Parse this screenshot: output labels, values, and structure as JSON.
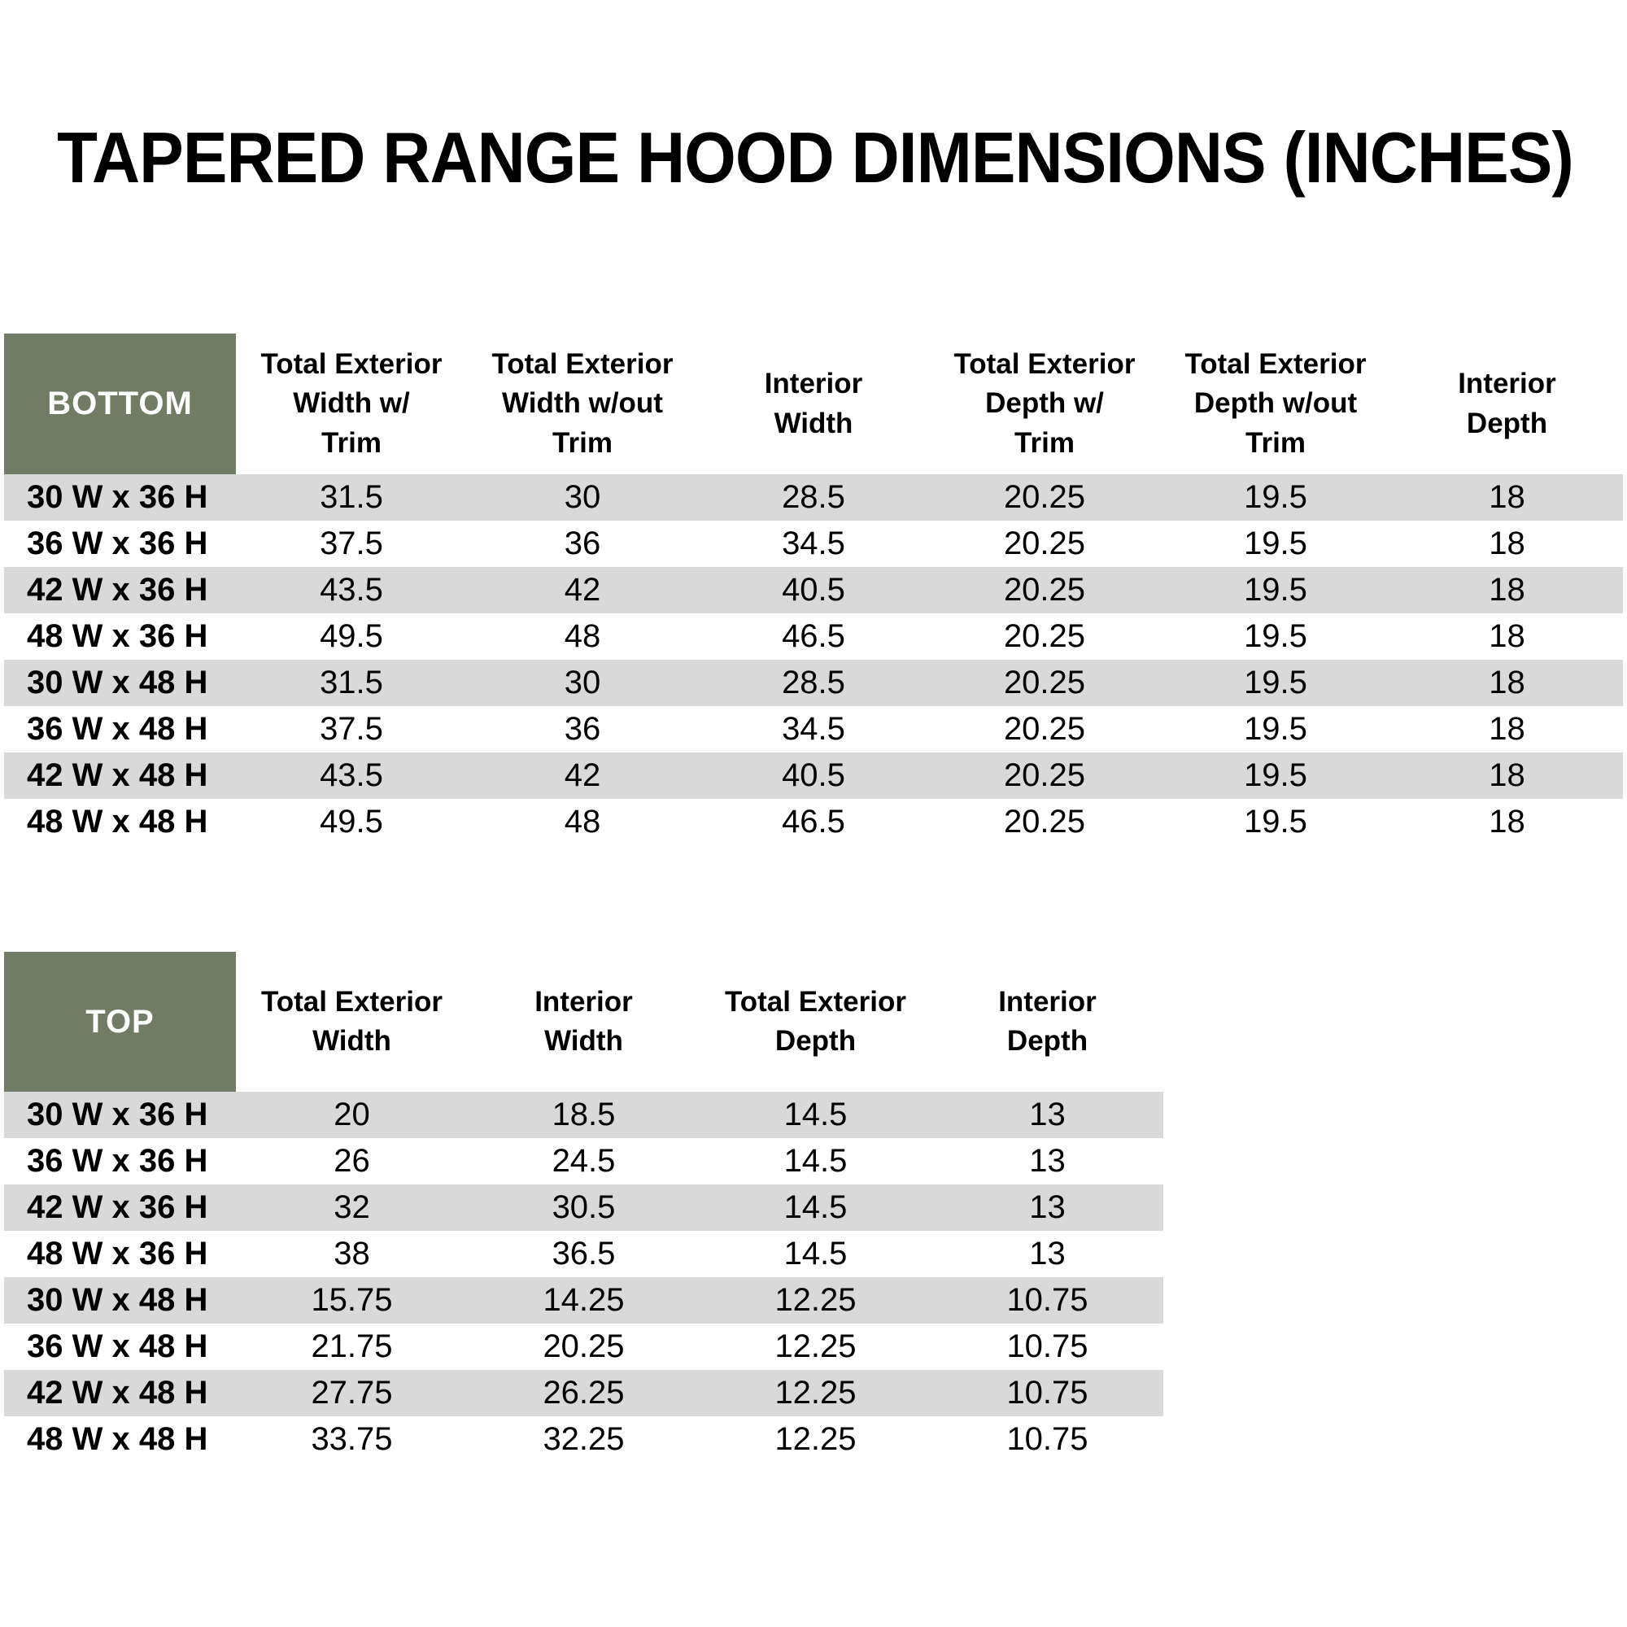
{
  "title": "TAPERED RANGE HOOD DIMENSIONS (INCHES)",
  "colors": {
    "header_green": "#707C64",
    "row_stripe_gray": "#D9D9D9",
    "header_text": "#FFFFFF",
    "body_text": "#000000"
  },
  "tables": [
    {
      "name": "bottom",
      "corner": "BOTTOM",
      "headers": [
        "Total Exterior\nWidth w/\nTrim",
        "Total Exterior\nWidth w/out\nTrim",
        "Interior\nWidth",
        "Total Exterior\nDepth w/\nTrim",
        "Total Exterior\nDepth w/out\nTrim",
        "Interior\nDepth"
      ],
      "rows": [
        {
          "label": "30 W x 36 H",
          "values": [
            "31.5",
            "30",
            "28.5",
            "20.25",
            "19.5",
            "18"
          ]
        },
        {
          "label": "36 W x 36 H",
          "values": [
            "37.5",
            "36",
            "34.5",
            "20.25",
            "19.5",
            "18"
          ]
        },
        {
          "label": "42 W x 36 H",
          "values": [
            "43.5",
            "42",
            "40.5",
            "20.25",
            "19.5",
            "18"
          ]
        },
        {
          "label": "48 W x 36 H",
          "values": [
            "49.5",
            "48",
            "46.5",
            "20.25",
            "19.5",
            "18"
          ]
        },
        {
          "label": "30 W x 48 H",
          "values": [
            "31.5",
            "30",
            "28.5",
            "20.25",
            "19.5",
            "18"
          ]
        },
        {
          "label": "36 W x 48 H",
          "values": [
            "37.5",
            "36",
            "34.5",
            "20.25",
            "19.5",
            "18"
          ]
        },
        {
          "label": "42 W x 48 H",
          "values": [
            "43.5",
            "42",
            "40.5",
            "20.25",
            "19.5",
            "18"
          ]
        },
        {
          "label": "48 W x 48 H",
          "values": [
            "49.5",
            "48",
            "46.5",
            "20.25",
            "19.5",
            "18"
          ]
        }
      ]
    },
    {
      "name": "top",
      "corner": "TOP",
      "headers": [
        "Total Exterior\nWidth",
        "Interior\nWidth",
        "Total Exterior\nDepth",
        "Interior\nDepth"
      ],
      "rows": [
        {
          "label": "30 W x 36 H",
          "values": [
            "20",
            "18.5",
            "14.5",
            "13"
          ]
        },
        {
          "label": "36 W x 36 H",
          "values": [
            "26",
            "24.5",
            "14.5",
            "13"
          ]
        },
        {
          "label": "42 W x 36 H",
          "values": [
            "32",
            "30.5",
            "14.5",
            "13"
          ]
        },
        {
          "label": "48 W x 36 H",
          "values": [
            "38",
            "36.5",
            "14.5",
            "13"
          ]
        },
        {
          "label": "30 W x 48 H",
          "values": [
            "15.75",
            "14.25",
            "12.25",
            "10.75"
          ]
        },
        {
          "label": "36 W x 48 H",
          "values": [
            "21.75",
            "20.25",
            "12.25",
            "10.75"
          ]
        },
        {
          "label": "42 W x 48 H",
          "values": [
            "27.75",
            "26.25",
            "12.25",
            "10.75"
          ]
        },
        {
          "label": "48 W x 48 H",
          "values": [
            "33.75",
            "32.25",
            "12.25",
            "10.75"
          ]
        }
      ]
    }
  ]
}
